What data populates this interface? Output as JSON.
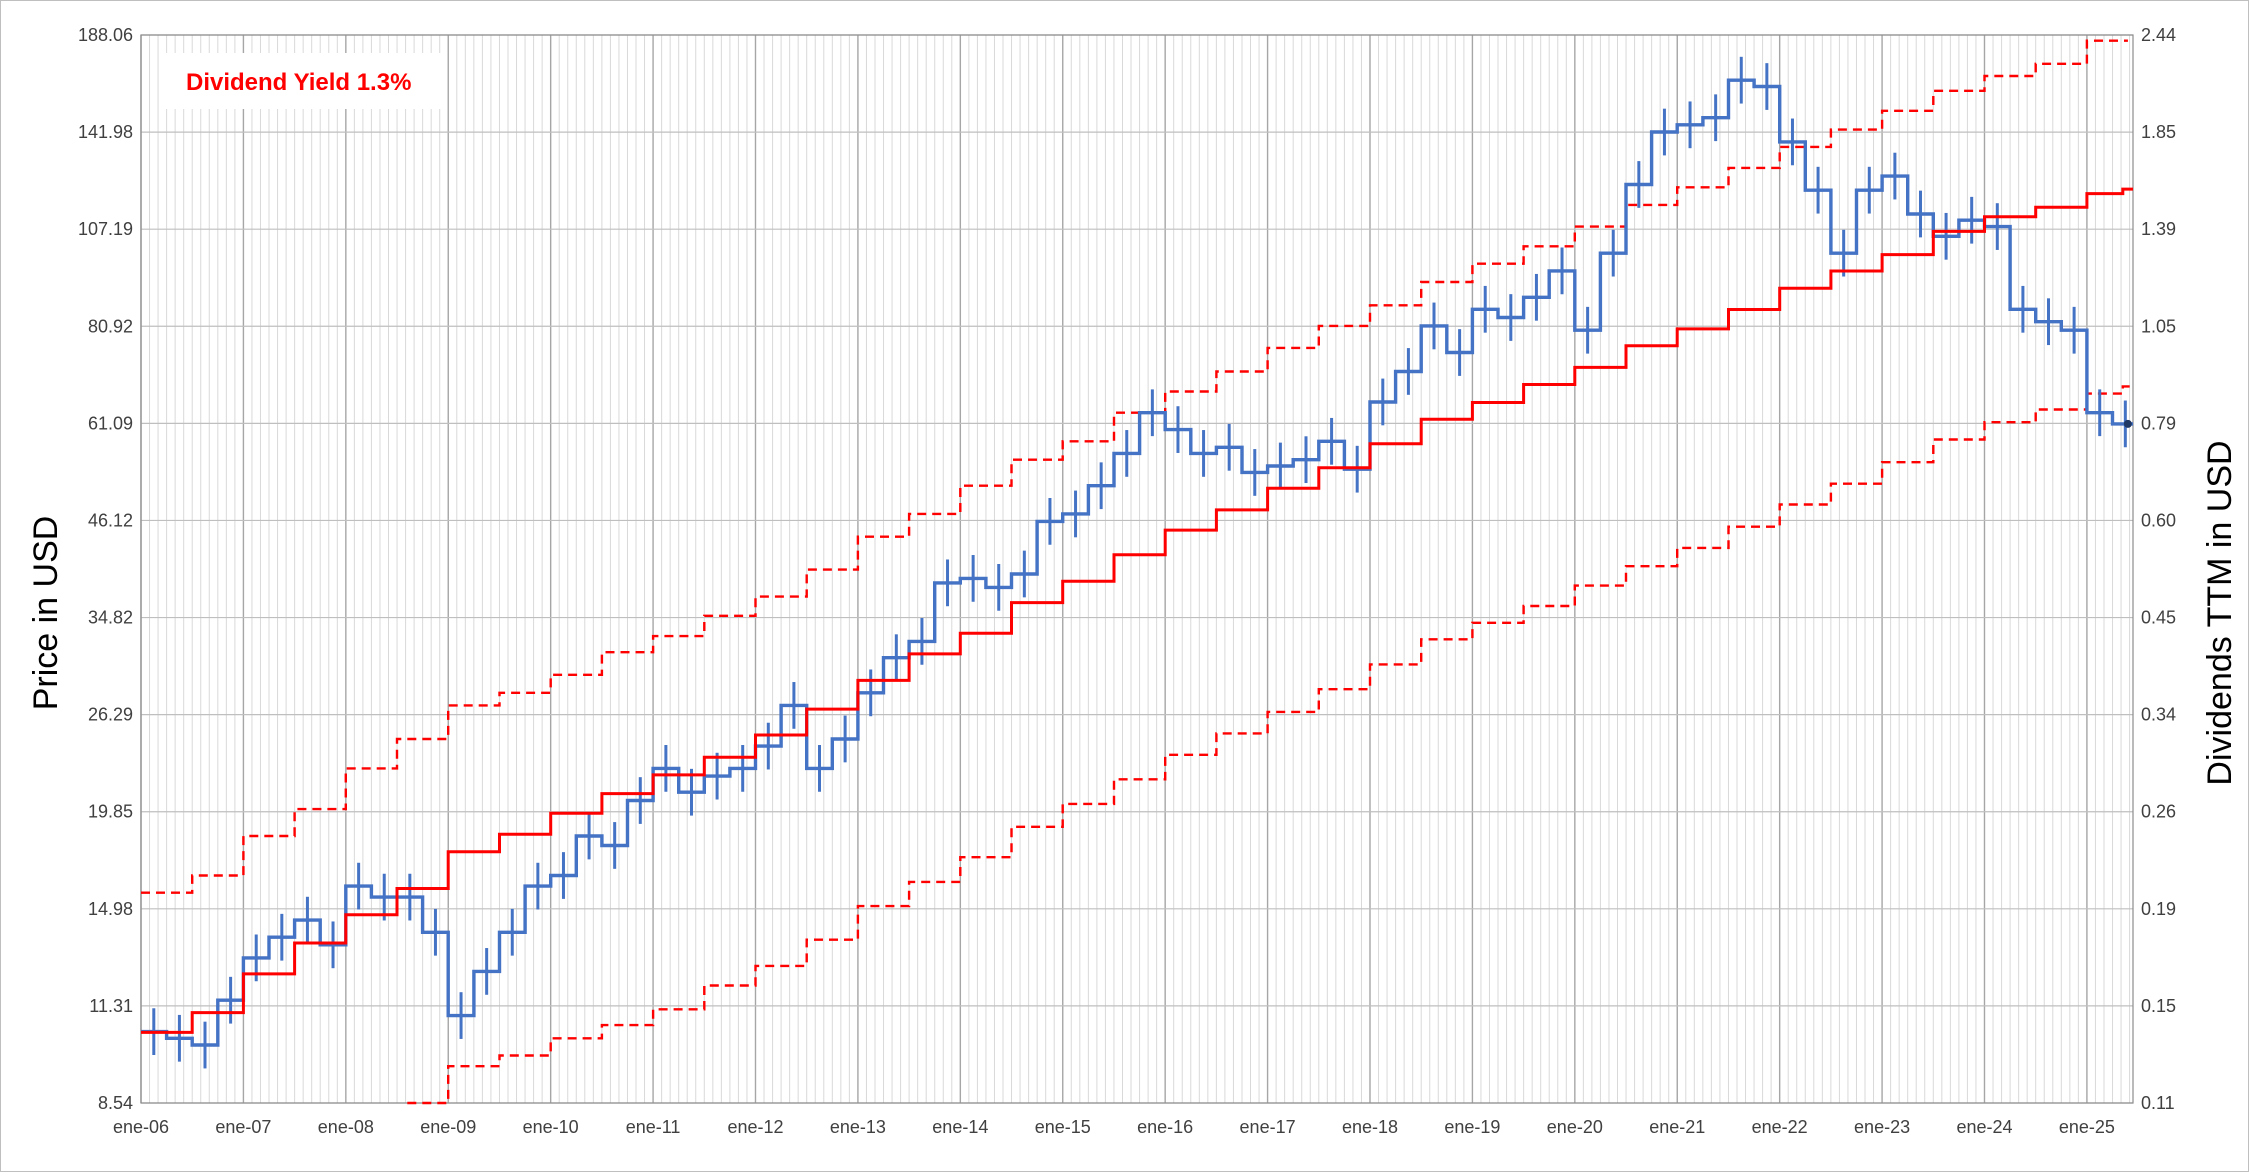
{
  "chart_data": {
    "type": "line",
    "annotation": "Dividend Yield 1.3%",
    "ylabel_left": "Price in USD",
    "ylabel_right": "Dividends TTM in USD",
    "left_ticks": [
      "8.54",
      "11.31",
      "14.98",
      "19.85",
      "26.29",
      "34.82",
      "46.12",
      "61.09",
      "80.92",
      "107.19",
      "141.98",
      "188.06"
    ],
    "right_ticks": [
      "0.11",
      "0.15",
      "0.19",
      "0.26",
      "0.34",
      "0.45",
      "0.60",
      "0.79",
      "1.05",
      "1.39",
      "1.85",
      "2.44"
    ],
    "x_ticks": [
      "ene-06",
      "ene-07",
      "ene-08",
      "ene-09",
      "ene-10",
      "ene-11",
      "ene-12",
      "ene-13",
      "ene-14",
      "ene-15",
      "ene-16",
      "ene-17",
      "ene-18",
      "ene-19",
      "ene-20",
      "ene-21",
      "ene-22",
      "ene-23",
      "ene-24",
      "ene-25"
    ],
    "ylim_left": [
      8.54,
      188.06
    ],
    "ylim_right": [
      0.11,
      2.44
    ],
    "y_scale": "log",
    "x_range": [
      "ene-06",
      "may-25"
    ],
    "grid": true,
    "series": [
      {
        "name": "Price",
        "color": "#4472c4",
        "style": "monthly bars",
        "x": [
          2006.0,
          2006.25,
          2006.5,
          2006.75,
          2007.0,
          2007.25,
          2007.5,
          2007.75,
          2008.0,
          2008.25,
          2008.5,
          2008.75,
          2009.0,
          2009.25,
          2009.5,
          2009.75,
          2010.0,
          2010.25,
          2010.5,
          2010.75,
          2011.0,
          2011.25,
          2011.5,
          2011.75,
          2012.0,
          2012.25,
          2012.5,
          2012.75,
          2013.0,
          2013.25,
          2013.5,
          2013.75,
          2014.0,
          2014.25,
          2014.5,
          2014.75,
          2015.0,
          2015.25,
          2015.5,
          2015.75,
          2016.0,
          2016.25,
          2016.5,
          2016.75,
          2017.0,
          2017.25,
          2017.5,
          2017.75,
          2018.0,
          2018.25,
          2018.5,
          2018.75,
          2019.0,
          2019.25,
          2019.5,
          2019.75,
          2020.0,
          2020.25,
          2020.5,
          2020.75,
          2021.0,
          2021.25,
          2021.5,
          2021.75,
          2022.0,
          2022.25,
          2022.5,
          2022.75,
          2023.0,
          2023.25,
          2023.5,
          2023.75,
          2024.0,
          2024.25,
          2024.5,
          2024.75,
          2025.0,
          2025.25
        ],
        "values": [
          10.5,
          10.3,
          10.1,
          11.5,
          13.0,
          13.8,
          14.5,
          13.5,
          16.0,
          15.5,
          15.5,
          14.0,
          11.0,
          12.5,
          14.0,
          16.0,
          16.5,
          18.5,
          18.0,
          20.5,
          22.5,
          21.0,
          22.0,
          22.5,
          24.0,
          27.0,
          22.5,
          24.5,
          28.0,
          31.0,
          32.5,
          38.5,
          39.0,
          38.0,
          39.5,
          46.0,
          47.0,
          51.0,
          56.0,
          63.0,
          60.0,
          56.0,
          57.0,
          53.0,
          54.0,
          55.0,
          58.0,
          53.5,
          65.0,
          71.0,
          81.0,
          75.0,
          85.0,
          83.0,
          88.0,
          95.0,
          80.0,
          100.0,
          122.0,
          142.0,
          145.0,
          148.0,
          165.0,
          162.0,
          138.0,
          120.0,
          100.0,
          120.0,
          125.0,
          112.0,
          105.0,
          110.0,
          108.0,
          85.0,
          82.0,
          80.0,
          63.0,
          61.0
        ]
      },
      {
        "name": "Dividends TTM",
        "color": "#ff0000",
        "style": "solid step",
        "x": [
          2006.0,
          2006.5,
          2007.0,
          2007.5,
          2008.0,
          2008.5,
          2009.0,
          2009.5,
          2010.0,
          2010.5,
          2011.0,
          2011.5,
          2012.0,
          2012.5,
          2013.0,
          2013.5,
          2014.0,
          2014.5,
          2015.0,
          2015.5,
          2016.0,
          2016.5,
          2017.0,
          2017.5,
          2018.0,
          2018.5,
          2019.0,
          2019.5,
          2020.0,
          2020.5,
          2021.0,
          2021.5,
          2022.0,
          2022.5,
          2023.0,
          2023.5,
          2024.0,
          2024.5,
          2025.0,
          2025.35
        ],
        "values": [
          0.135,
          0.143,
          0.16,
          0.175,
          0.19,
          0.205,
          0.228,
          0.24,
          0.255,
          0.27,
          0.285,
          0.3,
          0.32,
          0.345,
          0.375,
          0.405,
          0.43,
          0.47,
          0.5,
          0.54,
          0.58,
          0.615,
          0.655,
          0.695,
          0.745,
          0.8,
          0.84,
          0.885,
          0.93,
          0.99,
          1.04,
          1.1,
          1.17,
          1.23,
          1.29,
          1.38,
          1.44,
          1.48,
          1.54,
          1.56
        ]
      },
      {
        "name": "Upper band",
        "color": "#ff0000",
        "style": "dashed step",
        "x": [
          2006.0,
          2006.5,
          2007.0,
          2007.5,
          2008.0,
          2008.5,
          2009.0,
          2009.5,
          2010.0,
          2010.5,
          2011.0,
          2011.5,
          2012.0,
          2012.5,
          2013.0,
          2013.5,
          2014.0,
          2014.5,
          2015.0,
          2015.5,
          2016.0,
          2016.5,
          2017.0,
          2017.5,
          2018.0,
          2018.5,
          2019.0,
          2019.5,
          2020.0,
          2020.5,
          2021.0,
          2021.5,
          2022.0,
          2022.5,
          2023.0,
          2023.5,
          2024.0,
          2024.5,
          2025.0
        ],
        "values": [
          15.7,
          16.5,
          18.5,
          20.0,
          22.5,
          24.5,
          27.0,
          28.0,
          29.5,
          31.5,
          33.0,
          35.0,
          37.0,
          40.0,
          44.0,
          47.0,
          51.0,
          55.0,
          58.0,
          63.0,
          67.0,
          71.0,
          76.0,
          81.0,
          86.0,
          92.0,
          97.0,
          102.0,
          108.0,
          115.0,
          121.0,
          128.0,
          136.0,
          143.0,
          151.0,
          160.0,
          167.0,
          173.0,
          185.0
        ]
      },
      {
        "name": "Lower band",
        "color": "#ff0000",
        "style": "dashed step",
        "x": [
          2008.6,
          2009.0,
          2009.5,
          2010.0,
          2010.5,
          2011.0,
          2011.5,
          2012.0,
          2012.5,
          2013.0,
          2013.5,
          2014.0,
          2014.5,
          2015.0,
          2015.5,
          2016.0,
          2016.5,
          2017.0,
          2017.5,
          2018.0,
          2018.5,
          2019.0,
          2019.5,
          2020.0,
          2020.5,
          2021.0,
          2021.5,
          2022.0,
          2022.5,
          2023.0,
          2023.5,
          2024.0,
          2024.5,
          2025.0,
          2025.35
        ],
        "values": [
          8.54,
          9.5,
          9.8,
          10.3,
          10.7,
          11.2,
          12.0,
          12.7,
          13.7,
          15.1,
          16.2,
          17.4,
          19.0,
          20.3,
          21.8,
          23.4,
          24.9,
          26.5,
          28.3,
          30.4,
          32.7,
          34.3,
          36.0,
          38.2,
          40.4,
          42.6,
          45.3,
          48.3,
          51.3,
          54.6,
          58.3,
          61.3,
          63.6,
          66.6,
          68.0
        ]
      }
    ]
  }
}
